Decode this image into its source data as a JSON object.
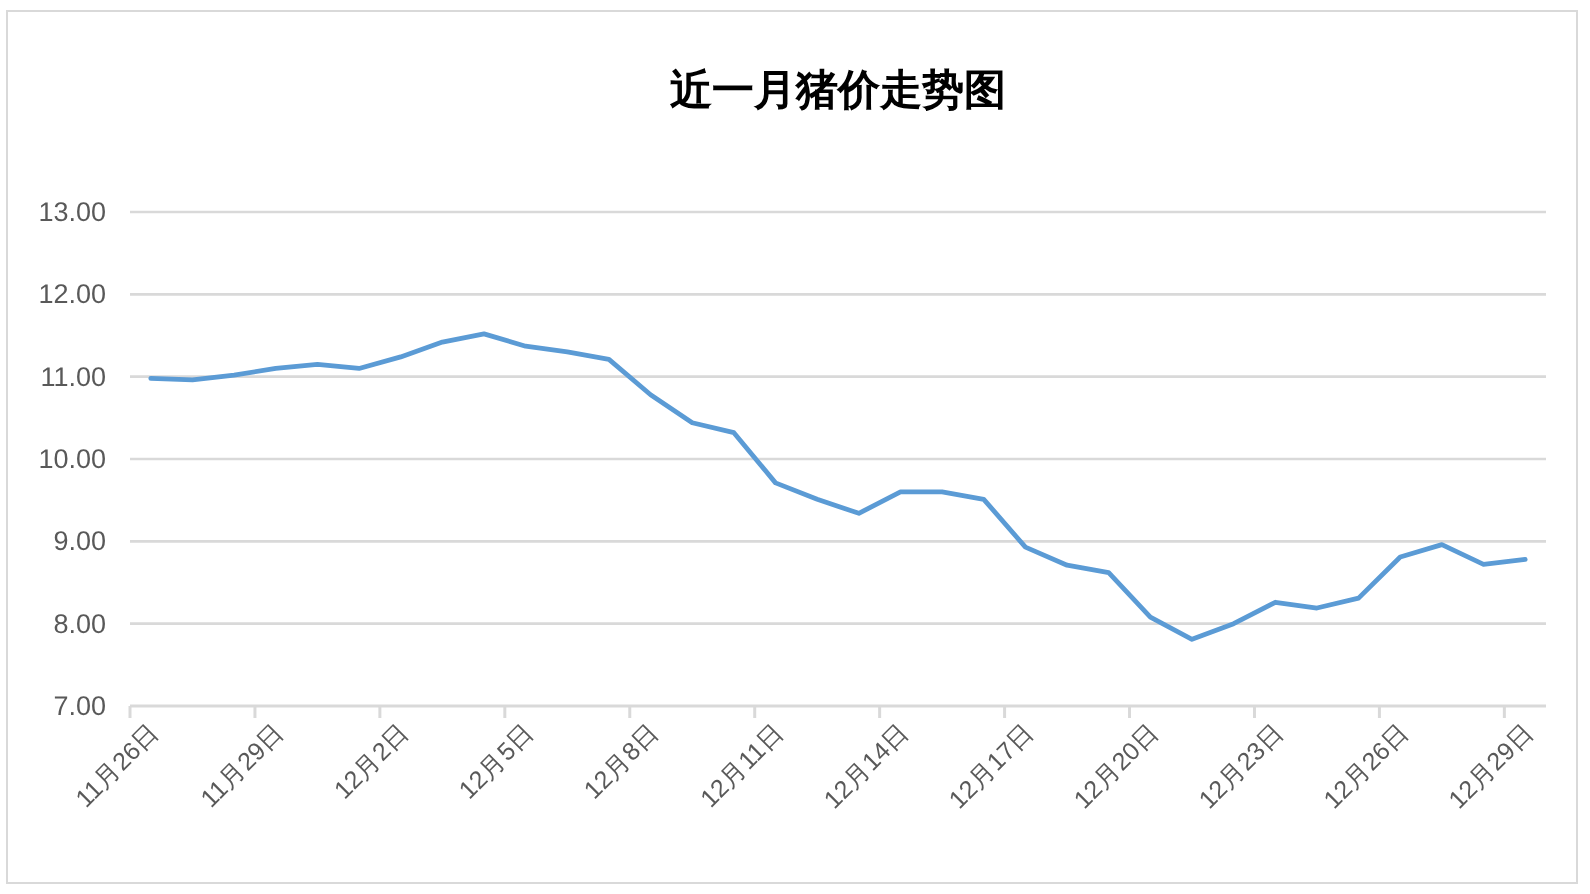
{
  "chart_data": {
    "type": "line",
    "title": "近一月猪价走势图",
    "categories": [
      "11月26日",
      null,
      null,
      "11月29日",
      null,
      null,
      "12月2日",
      null,
      null,
      "12月5日",
      null,
      null,
      "12月8日",
      null,
      null,
      "12月11日",
      null,
      null,
      "12月14日",
      null,
      null,
      "12月17日",
      null,
      null,
      "12月20日",
      null,
      null,
      "12月23日",
      null,
      null,
      "12月26日",
      null,
      null,
      "12月29日"
    ],
    "series": [
      {
        "color": "#5b9bd5",
        "values": [
          10.98,
          10.96,
          11.02,
          11.1,
          11.15,
          11.1,
          11.24,
          11.42,
          11.52,
          11.37,
          11.3,
          11.21,
          10.78,
          10.44,
          10.32,
          9.71,
          9.51,
          9.34,
          9.6,
          9.6,
          9.51,
          8.93,
          8.71,
          8.62,
          8.08,
          7.81,
          8.0,
          8.26,
          8.19,
          8.31,
          8.81,
          8.96,
          8.72,
          8.78
        ]
      }
    ],
    "ylim": [
      7,
      13
    ],
    "yticks": [
      {
        "value": 7,
        "label": "7.00"
      },
      {
        "value": 8,
        "label": "8.00"
      },
      {
        "value": 9,
        "label": "9.00"
      },
      {
        "value": 10,
        "label": "10.00"
      },
      {
        "value": 11,
        "label": "11.00"
      },
      {
        "value": 12,
        "label": "12.00"
      },
      {
        "value": 13,
        "label": "13.00"
      }
    ],
    "grid": "y"
  }
}
